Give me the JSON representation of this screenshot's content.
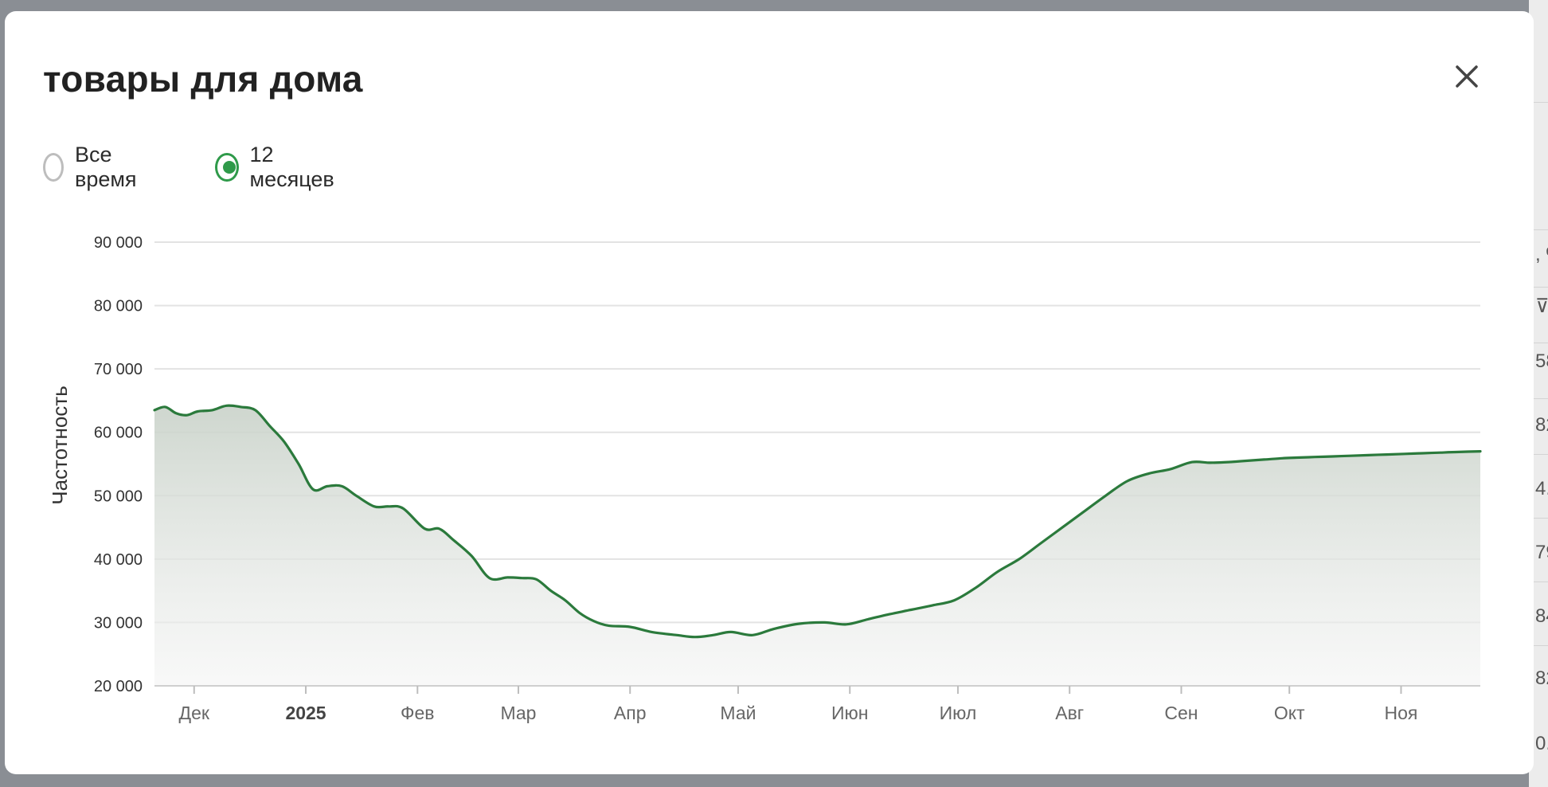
{
  "modal": {
    "title": "товары для дома",
    "close_icon": "close-icon"
  },
  "period": {
    "options": [
      {
        "label": "Все время",
        "selected": false
      },
      {
        "label": "12 месяцев",
        "selected": true
      }
    ]
  },
  "colors": {
    "accent": "#2f9a4a",
    "line": "#2b7a3c",
    "grid": "#e3e3e3"
  },
  "backdrop_fragments": [
    ", %",
    "⊽",
    "58",
    "82",
    "4.",
    "79",
    "84",
    "82",
    "0."
  ],
  "chart_data": {
    "type": "area",
    "title": "",
    "xlabel": "",
    "ylabel": "Частотность",
    "ylim": [
      20000,
      90000
    ],
    "yticks": [
      20000,
      30000,
      40000,
      50000,
      60000,
      70000,
      80000,
      90000
    ],
    "ytick_labels": [
      "20 000",
      "30 000",
      "40 000",
      "50 000",
      "60 000",
      "70 000",
      "80 000",
      "90 000"
    ],
    "x_start": "2024-11-20",
    "x_end": "2025-11-23",
    "xticks": [
      {
        "date": "2024-12-01",
        "label": "Дек",
        "bold": false
      },
      {
        "date": "2025-01-01",
        "label": "2025",
        "bold": true
      },
      {
        "date": "2025-02-01",
        "label": "Фев",
        "bold": false
      },
      {
        "date": "2025-03-01",
        "label": "Мар",
        "bold": false
      },
      {
        "date": "2025-04-01",
        "label": "Апр",
        "bold": false
      },
      {
        "date": "2025-05-01",
        "label": "Май",
        "bold": false
      },
      {
        "date": "2025-06-01",
        "label": "Июн",
        "bold": false
      },
      {
        "date": "2025-07-01",
        "label": "Июл",
        "bold": false
      },
      {
        "date": "2025-08-01",
        "label": "Авг",
        "bold": false
      },
      {
        "date": "2025-09-01",
        "label": "Сен",
        "bold": false
      },
      {
        "date": "2025-10-01",
        "label": "Окт",
        "bold": false
      },
      {
        "date": "2025-11-01",
        "label": "Ноя",
        "bold": false
      }
    ],
    "grid": true,
    "legend": "none",
    "series": [
      {
        "x": [
          "2024-11-20",
          "2024-11-23",
          "2024-11-26",
          "2024-11-29",
          "2024-12-02",
          "2024-12-06",
          "2024-12-10",
          "2024-12-14",
          "2024-12-18",
          "2024-12-22",
          "2024-12-26",
          "2024-12-30",
          "2025-01-03",
          "2025-01-07",
          "2025-01-11",
          "2025-01-15",
          "2025-01-20",
          "2025-01-24",
          "2025-01-28",
          "2025-02-03",
          "2025-02-07",
          "2025-02-11",
          "2025-02-16",
          "2025-02-21",
          "2025-02-26",
          "2025-03-02",
          "2025-03-06",
          "2025-03-10",
          "2025-03-14",
          "2025-03-18",
          "2025-03-22",
          "2025-03-26",
          "2025-04-01",
          "2025-04-07",
          "2025-04-14",
          "2025-04-19",
          "2025-04-24",
          "2025-04-29",
          "2025-05-05",
          "2025-05-11",
          "2025-05-18",
          "2025-05-25",
          "2025-05-31",
          "2025-06-06",
          "2025-06-12",
          "2025-06-18",
          "2025-06-24",
          "2025-06-30",
          "2025-07-06",
          "2025-07-12",
          "2025-07-18",
          "2025-07-24",
          "2025-07-30",
          "2025-08-05",
          "2025-08-11",
          "2025-08-17",
          "2025-08-23",
          "2025-08-29",
          "2025-09-04",
          "2025-09-09",
          "2025-09-14",
          "2025-09-19",
          "2025-09-24",
          "2025-09-29",
          "2025-10-03",
          "2025-10-08",
          "2025-10-13",
          "2025-10-18",
          "2025-10-23",
          "2025-10-28",
          "2025-11-02",
          "2025-11-07",
          "2025-11-12",
          "2025-11-17",
          "2025-11-23"
        ],
        "values": [
          63500,
          64000,
          63000,
          62700,
          63300,
          63500,
          64200,
          64000,
          63500,
          61000,
          58500,
          55000,
          51000,
          51500,
          51500,
          50000,
          48300,
          48300,
          48000,
          44800,
          44800,
          43000,
          40500,
          37000,
          37100,
          37000,
          36800,
          35000,
          33500,
          31500,
          30200,
          29500,
          29300,
          28500,
          28000,
          27700,
          28000,
          28500,
          28000,
          29000,
          29800,
          30000,
          29700,
          30500,
          31300,
          32000,
          32700,
          33500,
          35500,
          38000,
          40000,
          42500,
          45000,
          47500,
          50000,
          52300,
          53500,
          54200,
          55300,
          55200,
          55300,
          55500,
          55700,
          55900,
          56000,
          56100,
          56200,
          56300,
          56400,
          56500,
          56600,
          56700,
          56800,
          56900,
          57000
        ]
      }
    ]
  }
}
